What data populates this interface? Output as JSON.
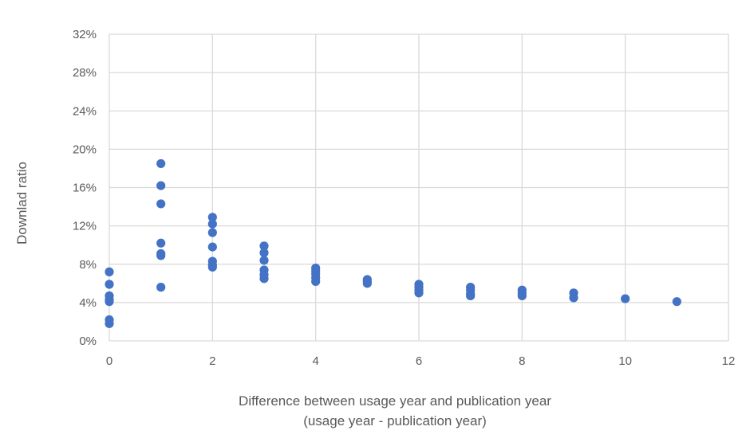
{
  "chart_data": {
    "type": "scatter",
    "xlabel_line1": "Difference between usage year and publication year",
    "xlabel_line2": "(usage year - publication year)",
    "ylabel": "Downlad ratio",
    "xlim": [
      0,
      12
    ],
    "ylim": [
      0,
      32
    ],
    "x_ticks": [
      0,
      2,
      4,
      6,
      8,
      10,
      12
    ],
    "y_ticks": [
      0,
      4,
      8,
      12,
      16,
      20,
      24,
      28,
      32
    ],
    "y_tick_suffix": "%",
    "grid": "both",
    "marker_color": "#4472c4",
    "grid_color": "#d9d9d9",
    "text_color": "#595959",
    "points": [
      {
        "x": 0,
        "y": 7.2
      },
      {
        "x": 0,
        "y": 5.9
      },
      {
        "x": 0,
        "y": 4.7
      },
      {
        "x": 0,
        "y": 4.3
      },
      {
        "x": 0,
        "y": 4.1
      },
      {
        "x": 0,
        "y": 2.2
      },
      {
        "x": 0,
        "y": 1.8
      },
      {
        "x": 1,
        "y": 18.5
      },
      {
        "x": 1,
        "y": 16.2
      },
      {
        "x": 1,
        "y": 14.3
      },
      {
        "x": 1,
        "y": 10.2
      },
      {
        "x": 1,
        "y": 9.1
      },
      {
        "x": 1,
        "y": 8.9
      },
      {
        "x": 1,
        "y": 5.6
      },
      {
        "x": 2,
        "y": 12.9
      },
      {
        "x": 2,
        "y": 12.2
      },
      {
        "x": 2,
        "y": 11.3
      },
      {
        "x": 2,
        "y": 9.8
      },
      {
        "x": 2,
        "y": 8.3
      },
      {
        "x": 2,
        "y": 7.9
      },
      {
        "x": 2,
        "y": 7.7
      },
      {
        "x": 3,
        "y": 9.9
      },
      {
        "x": 3,
        "y": 9.2
      },
      {
        "x": 3,
        "y": 8.4
      },
      {
        "x": 3,
        "y": 7.4
      },
      {
        "x": 3,
        "y": 6.9
      },
      {
        "x": 3,
        "y": 6.5
      },
      {
        "x": 4,
        "y": 7.6
      },
      {
        "x": 4,
        "y": 7.3
      },
      {
        "x": 4,
        "y": 7.0
      },
      {
        "x": 4,
        "y": 6.6
      },
      {
        "x": 4,
        "y": 6.2
      },
      {
        "x": 5,
        "y": 6.4
      },
      {
        "x": 5,
        "y": 6.2
      },
      {
        "x": 5,
        "y": 6.0
      },
      {
        "x": 6,
        "y": 5.9
      },
      {
        "x": 6,
        "y": 5.6
      },
      {
        "x": 6,
        "y": 5.3
      },
      {
        "x": 6,
        "y": 5.0
      },
      {
        "x": 7,
        "y": 5.6
      },
      {
        "x": 7,
        "y": 5.3
      },
      {
        "x": 7,
        "y": 4.9
      },
      {
        "x": 7,
        "y": 4.7
      },
      {
        "x": 8,
        "y": 5.3
      },
      {
        "x": 8,
        "y": 5.0
      },
      {
        "x": 8,
        "y": 4.7
      },
      {
        "x": 9,
        "y": 5.0
      },
      {
        "x": 9,
        "y": 4.5
      },
      {
        "x": 10,
        "y": 4.4
      },
      {
        "x": 11,
        "y": 4.1
      }
    ]
  }
}
